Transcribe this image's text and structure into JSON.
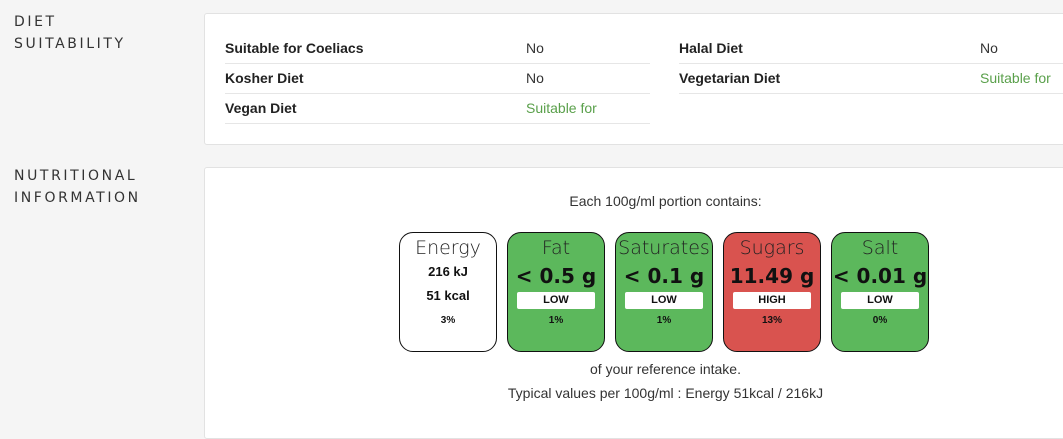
{
  "diet": {
    "label_line1": "DIET",
    "label_line2": "SUITABILITY",
    "rows_left": [
      {
        "key": "Suitable for Coeliacs",
        "value": "No"
      },
      {
        "key": "Kosher Diet",
        "value": "No"
      },
      {
        "key": "Vegan Diet",
        "value": "Suitable for"
      }
    ],
    "rows_right": [
      {
        "key": "Halal Diet",
        "value": "No"
      },
      {
        "key": "Vegetarian Diet",
        "value": "Suitable for"
      }
    ]
  },
  "nutrition": {
    "label_line1": "NUTRITIONAL",
    "label_line2": "INFORMATION",
    "header": "Each 100g/ml portion contains:",
    "energy": {
      "name": "Energy",
      "kj": "216 kJ",
      "kcal": "51 kcal",
      "pct": "3%"
    },
    "tiles": [
      {
        "name": "Fat",
        "amount": "< 0.5 g",
        "level": "LOW",
        "pct": "1%",
        "color": "#5cb85c"
      },
      {
        "name": "Saturates",
        "amount": "< 0.1 g",
        "level": "LOW",
        "pct": "1%",
        "color": "#5cb85c"
      },
      {
        "name": "Sugars",
        "amount": "11.49 g",
        "level": "HIGH",
        "pct": "13%",
        "color": "#d9534f"
      },
      {
        "name": "Salt",
        "amount": "< 0.01 g",
        "level": "LOW",
        "pct": "0%",
        "color": "#5cb85c"
      }
    ],
    "footer1": "of your reference intake.",
    "footer2": "Typical values per 100g/ml : Energy 51kcal / 216kJ"
  }
}
